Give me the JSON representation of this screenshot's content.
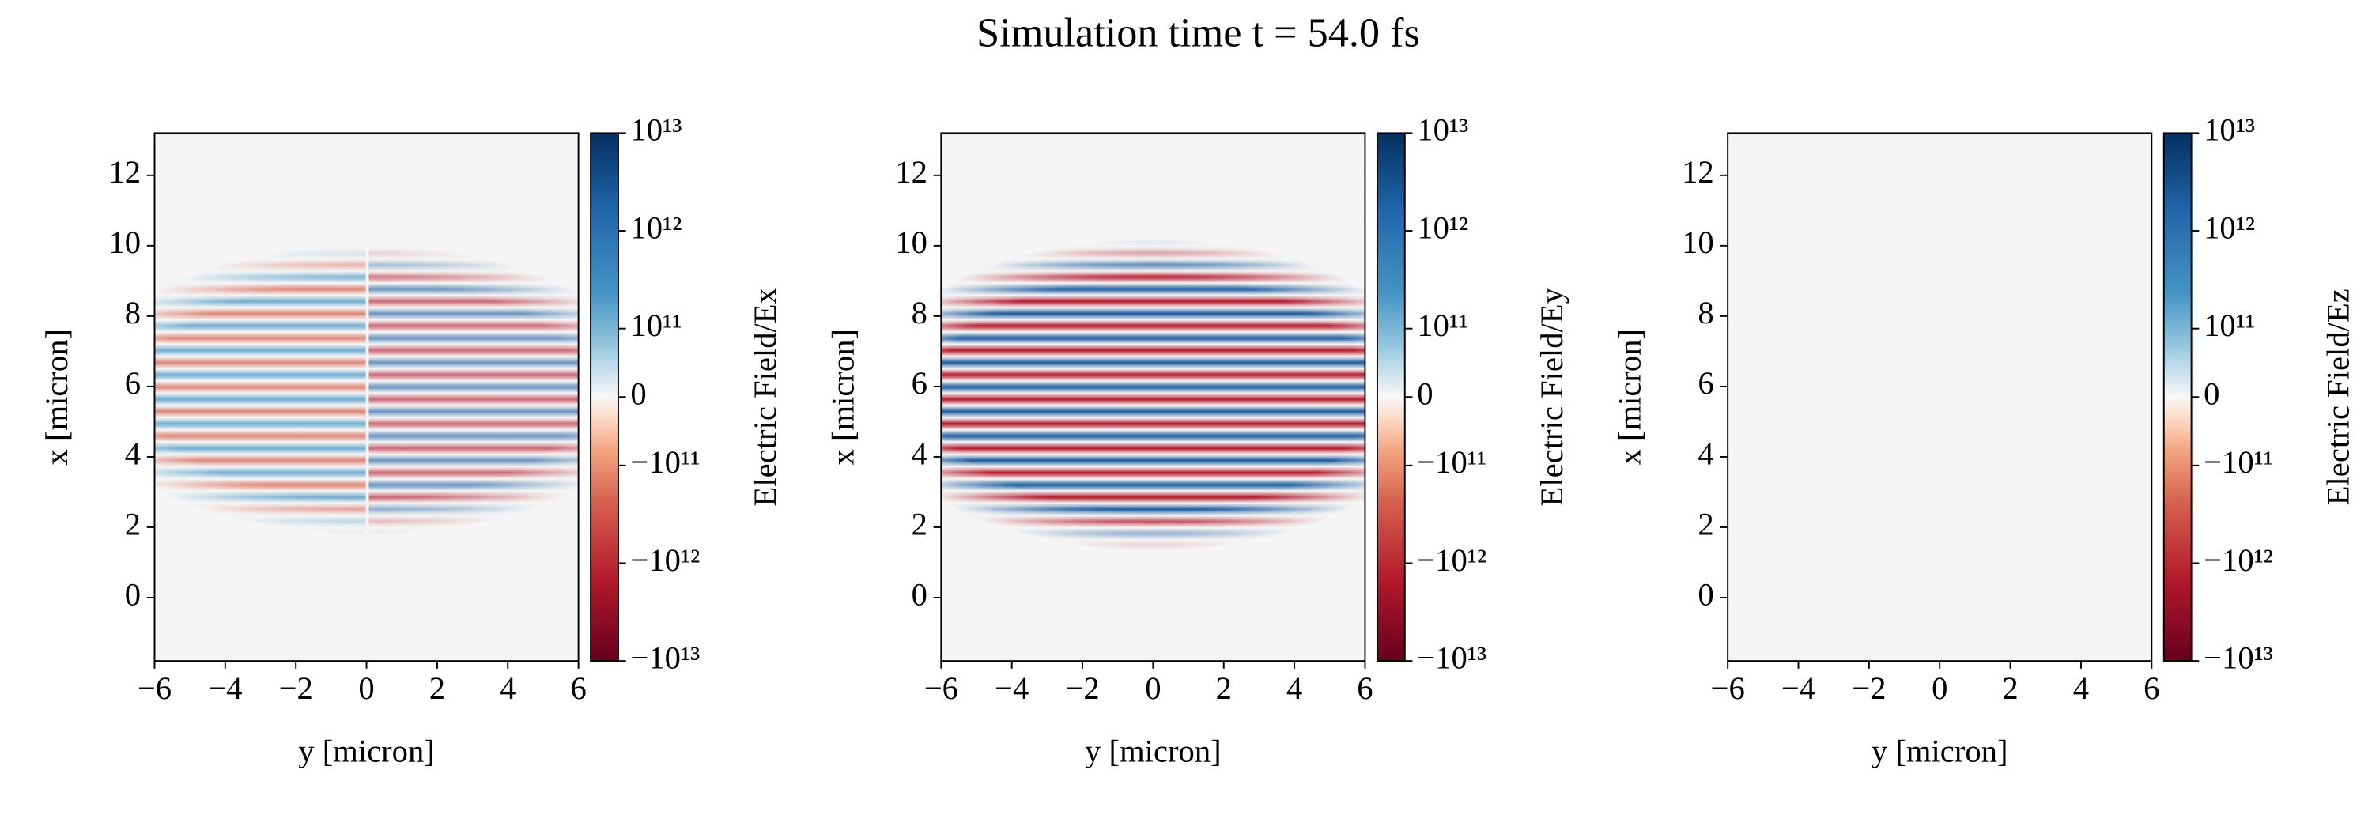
{
  "title": "Simulation time t = 54.0 fs",
  "chart_data": [
    {
      "type": "heatmap",
      "xlabel": "y [micron]",
      "ylabel": "x [micron]",
      "xlim": [
        -6,
        6
      ],
      "ylim": [
        -1.8,
        13.2
      ],
      "xticks": [
        {
          "value": -6,
          "label": "−6"
        },
        {
          "value": -4,
          "label": "−4"
        },
        {
          "value": -2,
          "label": "−2"
        },
        0,
        2,
        4,
        6
      ],
      "yticks": [
        0,
        2,
        4,
        6,
        8,
        10,
        12
      ],
      "colorbar_label": "Electric Field/Ex",
      "colorbar_scale": "symlog",
      "clim": [
        -10000000000000.0,
        10000000000000.0
      ],
      "cticks": [
        {
          "value": 10000000000000.0,
          "label": "10¹³"
        },
        {
          "value": 1000000000000.0,
          "label": "10¹²"
        },
        {
          "value": 100000000000.0,
          "label": "10¹¹"
        },
        0,
        {
          "value": -100000000000.0,
          "label": "−10¹¹"
        },
        {
          "value": -1000000000000.0,
          "label": "−10¹²"
        },
        {
          "value": -10000000000000.0,
          "label": "−10¹³"
        }
      ]
    },
    {
      "type": "heatmap",
      "xlabel": "y [micron]",
      "ylabel": "x [micron]",
      "xlim": [
        -6,
        6
      ],
      "ylim": [
        -1.8,
        13.2
      ],
      "xticks": [
        {
          "value": -6,
          "label": "−6"
        },
        {
          "value": -4,
          "label": "−4"
        },
        {
          "value": -2,
          "label": "−2"
        },
        0,
        2,
        4,
        6
      ],
      "yticks": [
        0,
        2,
        4,
        6,
        8,
        10,
        12
      ],
      "colorbar_label": "Electric Field/Ey",
      "colorbar_scale": "symlog",
      "clim": [
        -10000000000000.0,
        10000000000000.0
      ],
      "cticks": [
        {
          "value": 10000000000000.0,
          "label": "10¹³"
        },
        {
          "value": 1000000000000.0,
          "label": "10¹²"
        },
        {
          "value": 100000000000.0,
          "label": "10¹¹"
        },
        0,
        {
          "value": -100000000000.0,
          "label": "−10¹¹"
        },
        {
          "value": -1000000000000.0,
          "label": "−10¹²"
        },
        {
          "value": -10000000000000.0,
          "label": "−10¹³"
        }
      ]
    },
    {
      "type": "heatmap",
      "xlabel": "y [micron]",
      "ylabel": "x [micron]",
      "xlim": [
        -6,
        6
      ],
      "ylim": [
        -1.8,
        13.2
      ],
      "xticks": [
        {
          "value": -6,
          "label": "−6"
        },
        {
          "value": -4,
          "label": "−4"
        },
        {
          "value": -2,
          "label": "−2"
        },
        0,
        2,
        4,
        6
      ],
      "yticks": [
        0,
        2,
        4,
        6,
        8,
        10,
        12
      ],
      "colorbar_label": "Electric Field/Ez",
      "colorbar_scale": "symlog",
      "clim": [
        -10000000000000.0,
        10000000000000.0
      ],
      "cticks": [
        {
          "value": 10000000000000.0,
          "label": "10¹³"
        },
        {
          "value": 1000000000000.0,
          "label": "10¹²"
        },
        {
          "value": 100000000000.0,
          "label": "10¹¹"
        },
        0,
        {
          "value": -100000000000.0,
          "label": "−10¹¹"
        },
        {
          "value": -1000000000000.0,
          "label": "−10¹²"
        },
        {
          "value": -10000000000000.0,
          "label": "−10¹³"
        }
      ]
    }
  ]
}
